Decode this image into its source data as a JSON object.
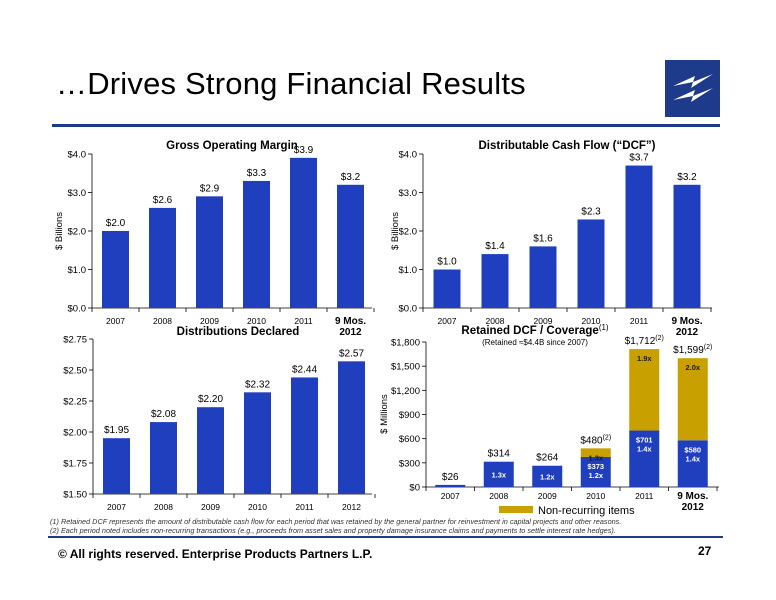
{
  "page": {
    "title": "…Drives Strong Financial Results",
    "footer": "©  All rights reserved. Enterprise Products Partners L.P.",
    "page_number": "27",
    "footnotes": [
      "(1) Retained DCF represents the amount of distributable cash flow for each period that was retained by the general partner for reinvestment in capital projects and other reasons.",
      "(2) Each period noted includes non-recurring transactions (e.g., proceeds from asset sales and property damage insurance claims and payments to settle interest rate hedges)."
    ],
    "colors": {
      "bar": "#1f3fbf",
      "nonrecurring": "#c8a000",
      "rule": "#1e3a8a",
      "logo": "#1e3a8a"
    }
  },
  "chart_data": [
    {
      "id": "gom",
      "type": "bar",
      "title": "Gross Operating Margin",
      "ylabel": "$ Billions",
      "categories": [
        "2007",
        "2008",
        "2009",
        "2010",
        "2011",
        "9 Mos.\n2012"
      ],
      "values": [
        2.0,
        2.6,
        2.9,
        3.3,
        3.9,
        3.2
      ],
      "value_labels": [
        "$2.0",
        "$2.6",
        "$2.9",
        "$3.3",
        "$3.9",
        "$3.2"
      ],
      "ylim": [
        0,
        4
      ],
      "yticks": [
        0,
        1,
        2,
        3,
        4
      ],
      "ytick_labels": [
        "$0.0",
        "$1.0",
        "$2.0",
        "$3.0",
        "$4.0"
      ],
      "grid": false
    },
    {
      "id": "dcf",
      "type": "bar",
      "title": "Distributable Cash Flow (“DCF”)",
      "ylabel": "$ Billions",
      "categories": [
        "2007",
        "2008",
        "2009",
        "2010",
        "2011",
        "9 Mos.\n2012"
      ],
      "values": [
        1.0,
        1.4,
        1.6,
        2.3,
        3.7,
        3.2
      ],
      "value_labels": [
        "$1.0",
        "$1.4",
        "$1.6",
        "$2.3",
        "$3.7",
        "$3.2"
      ],
      "ylim": [
        0,
        4
      ],
      "yticks": [
        0,
        1,
        2,
        3,
        4
      ],
      "ytick_labels": [
        "$0.0",
        "$1.0",
        "$2.0",
        "$3.0",
        "$4.0"
      ],
      "grid": false
    },
    {
      "id": "dist",
      "type": "bar",
      "title": "Distributions Declared",
      "ylabel": "",
      "categories": [
        "2007",
        "2008",
        "2009",
        "2010",
        "2011",
        "2012"
      ],
      "values": [
        1.95,
        2.08,
        2.2,
        2.32,
        2.44,
        2.57
      ],
      "value_labels": [
        "$1.95",
        "$2.08",
        "$2.20",
        "$2.32",
        "$2.44",
        "$2.57"
      ],
      "ylim": [
        1.5,
        2.75
      ],
      "yticks": [
        1.5,
        1.75,
        2.0,
        2.25,
        2.5,
        2.75
      ],
      "ytick_labels": [
        "$1.50",
        "$1.75",
        "$2.00",
        "$2.25",
        "$2.50",
        "$2.75"
      ],
      "grid": false
    },
    {
      "id": "rdcf",
      "type": "bar",
      "stacked": true,
      "title": "Retained DCF / Coverage",
      "title_sup": "(1)",
      "subtitle": "(Retained ≈$4.4B since 2007)",
      "ylabel": "$ Millions",
      "categories": [
        "2007",
        "2008",
        "2009",
        "2010",
        "2011",
        "9 Mos.\n2012"
      ],
      "series": [
        {
          "name": "",
          "values": [
            26,
            314,
            264,
            373,
            701,
            580
          ]
        },
        {
          "name": "Non-recurring items",
          "values": [
            0,
            0,
            0,
            107,
            1011,
            1019
          ]
        }
      ],
      "totals": [
        26,
        314,
        264,
        480,
        1712,
        1599
      ],
      "total_labels": [
        "$26",
        "$314",
        "$264",
        "$480",
        "$1,712",
        "$1,599"
      ],
      "total_sups": [
        "",
        "",
        "",
        "(2)",
        "(2)",
        "(2)"
      ],
      "inner_labels": [
        "",
        "1.3x",
        "1.2x",
        "$373\n1.2x",
        "$701\n1.4x",
        "$580\n1.4x"
      ],
      "upper_labels": [
        "",
        "",
        "",
        "1.3x",
        "1.9x",
        "2.0x"
      ],
      "ylim": [
        0,
        1800
      ],
      "yticks": [
        0,
        300,
        600,
        900,
        1200,
        1500,
        1800
      ],
      "ytick_labels": [
        "$0",
        "$300",
        "$600",
        "$900",
        "$1,200",
        "$1,500",
        "$1,800"
      ],
      "legend": "bottom",
      "grid": false
    }
  ]
}
